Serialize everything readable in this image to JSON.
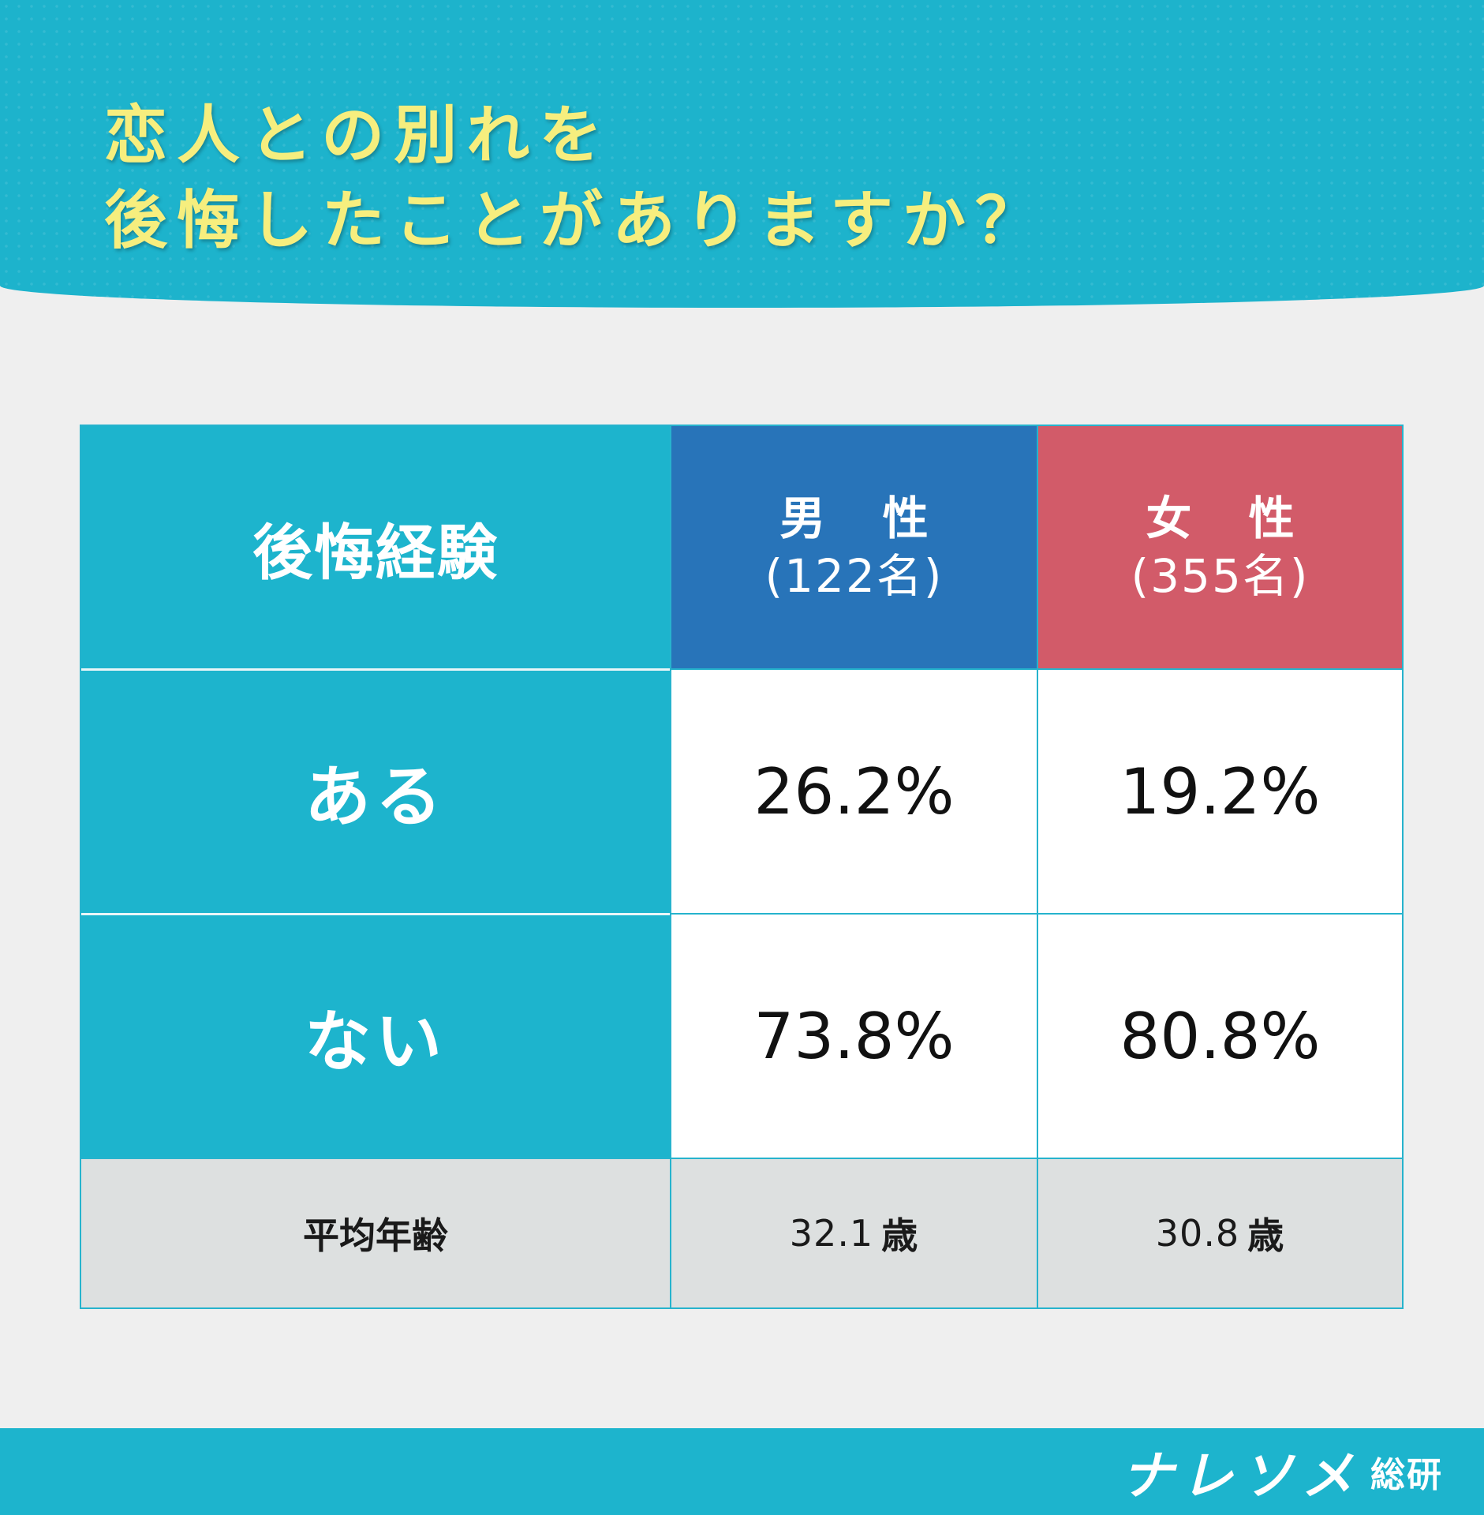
{
  "title": {
    "line1": "恋人との別れを",
    "line2": "後悔したことがありますか？"
  },
  "chart_data": {
    "type": "table",
    "title": "恋人との別れを後悔したことがありますか？",
    "corner_header": "後悔経験",
    "columns": [
      {
        "label": "男 性",
        "count": "(122名)",
        "color": "#2874b9"
      },
      {
        "label": "女 性",
        "count": "(355名)",
        "color": "#d25b69"
      }
    ],
    "rows": [
      {
        "label": "ある",
        "values": [
          "26.2%",
          "19.2%"
        ]
      },
      {
        "label": "ない",
        "values": [
          "73.8%",
          "80.8%"
        ]
      }
    ],
    "footer": {
      "label": "平均年齢",
      "values": [
        "32.1",
        "30.8"
      ],
      "unit": "歳"
    }
  },
  "colors": {
    "header_bg": "#1db3cc",
    "title_text": "#f6ee7e",
    "men": "#2874b9",
    "women": "#d25b69",
    "footer_row_bg": "#dde0e0"
  },
  "logo": {
    "kana": "ナレソメ",
    "kanji": "総研"
  }
}
